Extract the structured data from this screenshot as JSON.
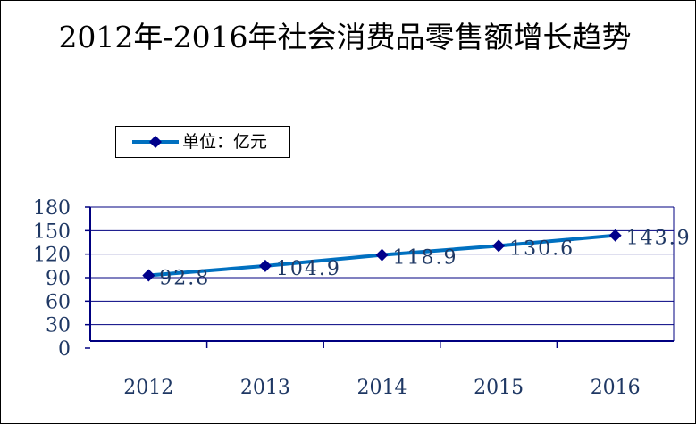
{
  "chart_data": {
    "type": "line",
    "title": "2012年-2016年社会消费品零售额增长趋势",
    "categories": [
      "2012",
      "2013",
      "2014",
      "2015",
      "2016"
    ],
    "series": [
      {
        "name": "单位：亿元",
        "values": [
          92.8,
          104.9,
          118.9,
          130.6,
          143.9
        ]
      }
    ],
    "data_labels": [
      "92.8",
      "104.9",
      "118.9",
      "130.6",
      "143.9"
    ],
    "ylim": [
      0,
      180
    ],
    "yticks": [
      0,
      30,
      60,
      90,
      120,
      150,
      180
    ],
    "ytick_labels": [
      "0",
      "30",
      "60",
      "90",
      "120",
      "150",
      "180"
    ],
    "xlabel": "",
    "ylabel": "",
    "grid": true,
    "legend_position": "top-left",
    "colors": {
      "line": "#0070C0",
      "marker": "#00008B",
      "grid": "#000080",
      "axis_text": "#1F3864",
      "label_text": "#1F3864"
    }
  }
}
